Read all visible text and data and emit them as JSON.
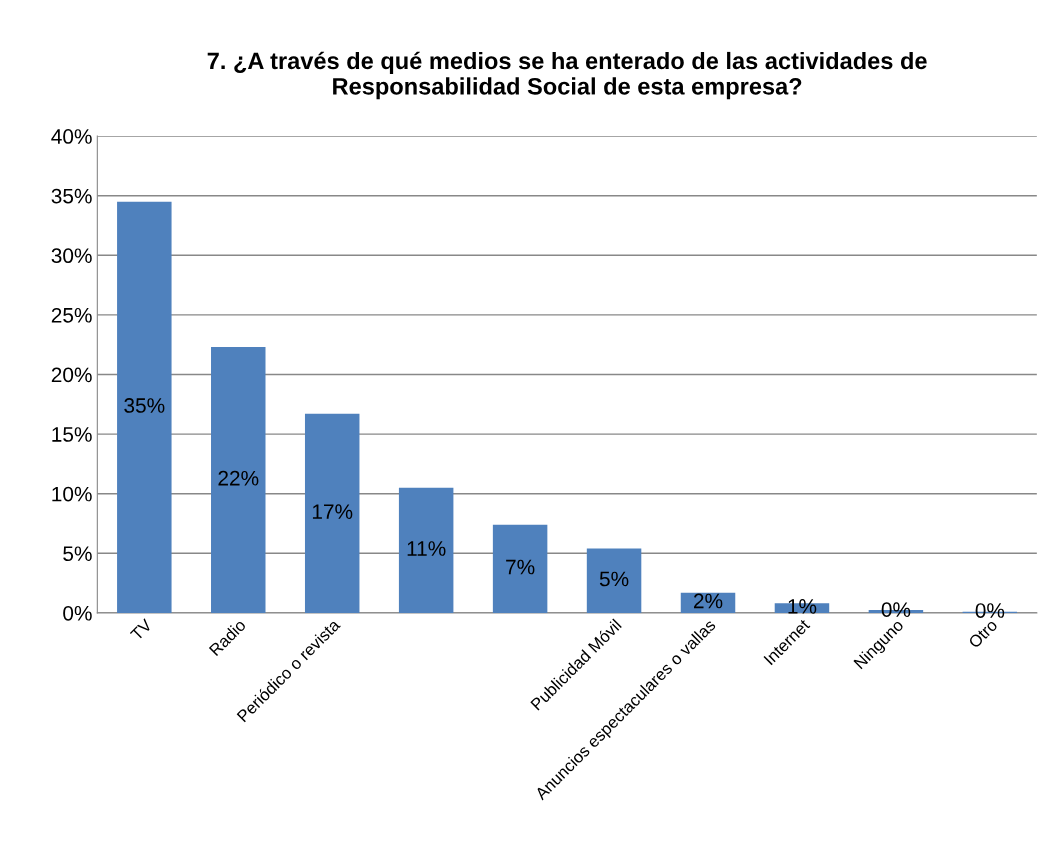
{
  "chart_data": {
    "type": "bar",
    "title": "7. ¿A través de qué medios se ha enterado de las actividades de\nResponsabilidad Social de esta empresa?",
    "categories": [
      "TV",
      "Radio",
      "Periódico o revista",
      null,
      null,
      "Publicidad Móvil",
      "Anuncios espectaculares o vallas",
      "Internet",
      "Ninguno",
      "Otro"
    ],
    "values": [
      34.5,
      22.3,
      16.7,
      10.5,
      7.4,
      5.4,
      1.7,
      0.8,
      0.25,
      0.1
    ],
    "value_labels": [
      "35%",
      "22%",
      "17%",
      "11%",
      "7%",
      "5%",
      "2%",
      "1%",
      "0%",
      "0%"
    ],
    "color": "#4f81bd",
    "ylim": [
      0,
      40
    ],
    "yticks": [
      {
        "value": 0,
        "label": "0%"
      },
      {
        "value": 5,
        "label": "5%"
      },
      {
        "value": 10,
        "label": "10%"
      },
      {
        "value": 15,
        "label": "15%"
      },
      {
        "value": 20,
        "label": "20%"
      },
      {
        "value": 25,
        "label": "25%"
      },
      {
        "value": 30,
        "label": "30%"
      },
      {
        "value": 35,
        "label": "35%"
      },
      {
        "value": 40,
        "label": "40%"
      }
    ],
    "grid": "y"
  }
}
